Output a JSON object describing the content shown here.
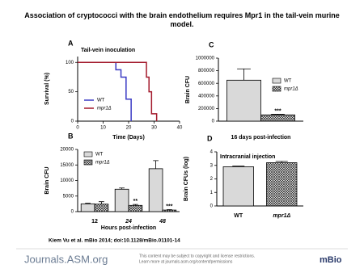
{
  "title": "Association of cryptococci with the brain endothelium requires Mpr1 in the tail-vein murine model.",
  "chart_data": [
    {
      "type": "line",
      "step": true,
      "panel": "A",
      "annotation": "Tail-vein inoculation",
      "xlabel": "Time (Days)",
      "ylabel": "Survival (%)",
      "xlim": [
        0,
        40
      ],
      "xticks": [
        0,
        10,
        20,
        30,
        40
      ],
      "ylim": [
        0,
        110
      ],
      "yticks": [
        0,
        50,
        100
      ],
      "legend": "lower left",
      "series": [
        {
          "name": "WT",
          "color": "#3a3ac4",
          "x": [
            0,
            15,
            17,
            19,
            21
          ],
          "values": [
            100,
            87.5,
            75,
            37.5,
            0
          ]
        },
        {
          "name": "mpr1Δ",
          "color": "#a3192b",
          "x": [
            0,
            27,
            28,
            29,
            31
          ],
          "values": [
            100,
            75,
            50,
            12.5,
            0
          ]
        }
      ]
    },
    {
      "type": "bar",
      "panel": "B",
      "ylabel": "Brain CFU",
      "xlabel": "Hours post-infection",
      "categories": [
        "12",
        "24",
        "48"
      ],
      "ylim": [
        0,
        20000
      ],
      "yticks": [
        0,
        5000,
        10000,
        15000,
        20000
      ],
      "legend": "upper left",
      "series": [
        {
          "name": "WT",
          "color": "#d9d9d9",
          "hatch": false,
          "values": [
            2500,
            7200,
            13800
          ],
          "errors": [
            200,
            400,
            2600
          ]
        },
        {
          "name": "mpr1Δ",
          "color": "#ffffff",
          "hatch": true,
          "values": [
            2400,
            2000,
            500
          ],
          "errors": [
            800,
            300,
            150
          ]
        }
      ],
      "significance": [
        null,
        "**",
        "***"
      ]
    },
    {
      "type": "bar",
      "panel": "C",
      "ylabel": "Brain CFU",
      "xlabel": "16 days post-infection",
      "categories": [
        null
      ],
      "ylim": [
        0,
        1000000
      ],
      "yticks": [
        0,
        200000,
        400000,
        600000,
        800000,
        1000000
      ],
      "legend": "upper right",
      "series": [
        {
          "name": "WT",
          "color": "#d9d9d9",
          "hatch": false,
          "values": [
            650000
          ],
          "errors": [
            180000
          ]
        },
        {
          "name": "mpr1Δ",
          "color": "#ffffff",
          "hatch": true,
          "values": [
            100000
          ],
          "errors": [
            10000
          ]
        }
      ],
      "significance": [
        "***"
      ]
    },
    {
      "type": "bar",
      "panel": "D",
      "annotation": "Intracranial injection",
      "ylabel": "Brain CFUs (log)",
      "categories": [
        "WT",
        "mpr1Δ"
      ],
      "ylim": [
        0,
        4
      ],
      "yticks": [
        0,
        1,
        2,
        3,
        4
      ],
      "series": [
        {
          "color": [
            "#d9d9d9",
            "#ffffff"
          ],
          "hatch": [
            false,
            true
          ],
          "values": [
            2.9,
            3.2
          ],
          "errors": [
            0.05,
            0.1
          ]
        }
      ]
    }
  ],
  "citation": "Kiem Vu et al. mBio 2014; doi:10.1128/mBio.01101-14",
  "footer": {
    "site": "Journals.ASM.org",
    "notice": "This content may be subject to copyright and license restrictions.",
    "link": "Learn more at journals.asm.org/content/permissions",
    "logo": "mBio"
  }
}
